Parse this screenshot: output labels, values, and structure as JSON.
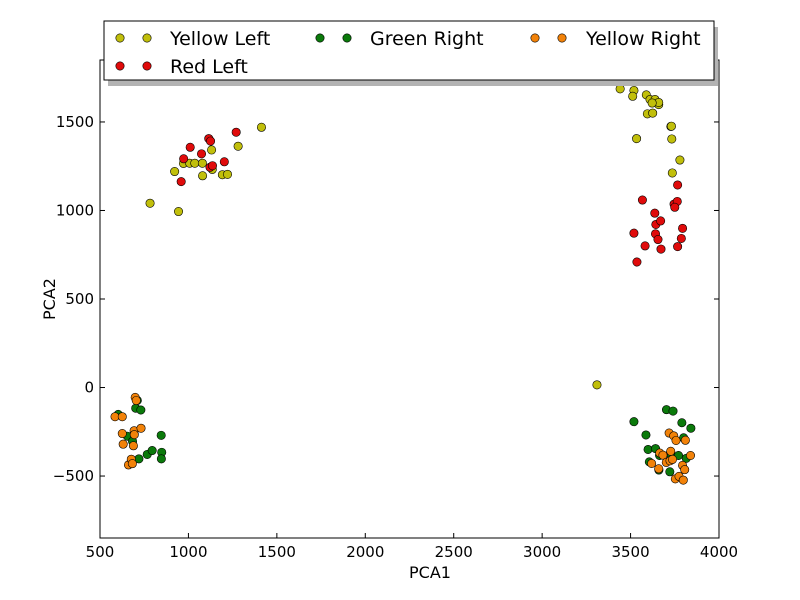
{
  "chart_data": {
    "type": "scatter",
    "title": "",
    "xlabel": "PCA1",
    "ylabel": "PCA2",
    "xlim": [
      500,
      4000
    ],
    "ylim": [
      -850,
      1850
    ],
    "xticks": [
      500,
      1000,
      1500,
      2000,
      2500,
      3000,
      3500,
      4000
    ],
    "yticks": [
      -500,
      0,
      500,
      1000,
      1500
    ],
    "grid": false,
    "legend": {
      "placement": "top",
      "columns": 3
    },
    "series": [
      {
        "name": "Yellow Left",
        "color": "#c1bf0b",
        "points": [
          [
            783,
            1041
          ],
          [
            944,
            994
          ],
          [
            922,
            1220
          ],
          [
            972,
            1266
          ],
          [
            1007,
            1267
          ],
          [
            1036,
            1267
          ],
          [
            1079,
            1267
          ],
          [
            1080,
            1196
          ],
          [
            1135,
            1232
          ],
          [
            1131,
            1342
          ],
          [
            1192,
            1202
          ],
          [
            1221,
            1204
          ],
          [
            1281,
            1363
          ],
          [
            1413,
            1470
          ],
          [
            3310,
            15
          ],
          [
            3441,
            1687
          ],
          [
            3519,
            1678
          ],
          [
            3512,
            1645
          ],
          [
            3589,
            1653
          ],
          [
            3610,
            1627
          ],
          [
            3638,
            1627
          ],
          [
            3659,
            1598
          ],
          [
            3659,
            1610
          ],
          [
            3595,
            1546
          ],
          [
            3625,
            1550
          ],
          [
            3622,
            1607
          ],
          [
            3534,
            1406
          ],
          [
            3728,
            1475
          ],
          [
            3731,
            1476
          ],
          [
            3733,
            1404
          ],
          [
            3736,
            1212
          ],
          [
            3779,
            1285
          ]
        ]
      },
      {
        "name": "Red Left",
        "color": "#e00b0b",
        "points": [
          [
            1010,
            1357
          ],
          [
            973,
            1292
          ],
          [
            959,
            1163
          ],
          [
            1074,
            1320
          ],
          [
            1115,
            1406
          ],
          [
            1125,
            1392
          ],
          [
            1122,
            1244
          ],
          [
            1136,
            1253
          ],
          [
            1203,
            1275
          ],
          [
            1270,
            1442
          ],
          [
            3567,
            1059
          ],
          [
            3637,
            985
          ],
          [
            3643,
            921
          ],
          [
            3670,
            941
          ],
          [
            3519,
            872
          ],
          [
            3641,
            868
          ],
          [
            3655,
            836
          ],
          [
            3582,
            800
          ],
          [
            3672,
            782
          ],
          [
            3536,
            709
          ],
          [
            3746,
            1036
          ],
          [
            3764,
            1051
          ],
          [
            3750,
            1018
          ],
          [
            3766,
            1144
          ],
          [
            3794,
            899
          ],
          [
            3787,
            842
          ],
          [
            3766,
            796
          ]
        ]
      },
      {
        "name": "Green Right",
        "color": "#0b7a0b",
        "points": [
          [
            603,
            -152
          ],
          [
            655,
            -275
          ],
          [
            684,
            -304
          ],
          [
            702,
            -117
          ],
          [
            711,
            -73
          ],
          [
            731,
            -127
          ],
          [
            720,
            -403
          ],
          [
            767,
            -378
          ],
          [
            795,
            -356
          ],
          [
            846,
            -270
          ],
          [
            849,
            -366
          ],
          [
            847,
            -403
          ],
          [
            3519,
            -193
          ],
          [
            3587,
            -268
          ],
          [
            3599,
            -350
          ],
          [
            3606,
            -420
          ],
          [
            3641,
            -345
          ],
          [
            3664,
            -384
          ],
          [
            3660,
            -466
          ],
          [
            3703,
            -125
          ],
          [
            3740,
            -133
          ],
          [
            3727,
            -363
          ],
          [
            3731,
            -388
          ],
          [
            3771,
            -384
          ],
          [
            3790,
            -199
          ],
          [
            3800,
            -284
          ],
          [
            3815,
            -400
          ],
          [
            3841,
            -230
          ],
          [
            3722,
            -476
          ]
        ]
      },
      {
        "name": "Yellow Right",
        "color": "#f28209",
        "points": [
          [
            585,
            -165
          ],
          [
            626,
            -165
          ],
          [
            626,
            -260
          ],
          [
            631,
            -320
          ],
          [
            661,
            -437
          ],
          [
            677,
            -405
          ],
          [
            683,
            -430
          ],
          [
            693,
            -244
          ],
          [
            694,
            -266
          ],
          [
            699,
            -56
          ],
          [
            705,
            -73
          ],
          [
            689,
            -329
          ],
          [
            732,
            -230
          ],
          [
            3619,
            -429
          ],
          [
            3659,
            -459
          ],
          [
            3665,
            -370
          ],
          [
            3683,
            -382
          ],
          [
            3702,
            -423
          ],
          [
            3718,
            -257
          ],
          [
            3723,
            -414
          ],
          [
            3737,
            -406
          ],
          [
            3744,
            -273
          ],
          [
            3757,
            -299
          ],
          [
            3753,
            -516
          ],
          [
            3774,
            -502
          ],
          [
            3794,
            -440
          ],
          [
            3798,
            -523
          ],
          [
            3806,
            -464
          ],
          [
            3810,
            -298
          ],
          [
            3839,
            -384
          ],
          [
            3727,
            -360
          ]
        ]
      }
    ]
  }
}
